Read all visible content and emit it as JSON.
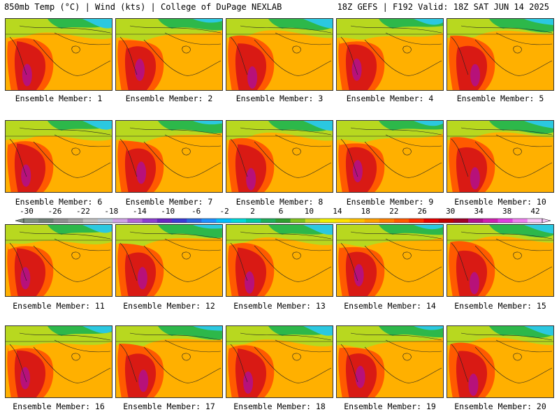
{
  "header": {
    "left": "850mb Temp (°C) | Wind (kts) | College of DuPage NEXLAB",
    "right": "18Z GEFS | F192 Valid: 18Z SAT JUN 14 2025"
  },
  "panels": [
    {
      "label": "Ensemble Member: 1"
    },
    {
      "label": "Ensemble Member: 2"
    },
    {
      "label": "Ensemble Member: 3"
    },
    {
      "label": "Ensemble Member: 4"
    },
    {
      "label": "Ensemble Member: 5"
    },
    {
      "label": "Ensemble Member: 6"
    },
    {
      "label": "Ensemble Member: 7"
    },
    {
      "label": "Ensemble Member: 8"
    },
    {
      "label": "Ensemble Member: 9"
    },
    {
      "label": "Ensemble Member: 10"
    },
    {
      "label": "Ensemble Member: 11"
    },
    {
      "label": "Ensemble Member: 12"
    },
    {
      "label": "Ensemble Member: 13"
    },
    {
      "label": "Ensemble Member: 14"
    },
    {
      "label": "Ensemble Member: 15"
    },
    {
      "label": "Ensemble Member: 16"
    },
    {
      "label": "Ensemble Member: 17"
    },
    {
      "label": "Ensemble Member: 18"
    },
    {
      "label": "Ensemble Member: 19"
    },
    {
      "label": "Ensemble Member: 20"
    }
  ],
  "colorbar": {
    "labels": [
      "-30",
      "-26",
      "-22",
      "-18",
      "-14",
      "-10",
      "-6",
      "-2",
      "2",
      "6",
      "10",
      "14",
      "18",
      "22",
      "26",
      "30",
      "34",
      "38",
      "42"
    ],
    "colors": [
      "#7f8f84",
      "#6f7f76",
      "#909090",
      "#a3a3a3",
      "#c0c0c0",
      "#b7c7d9",
      "#cfa3e6",
      "#b266d9",
      "#8c3fd0",
      "#6a26c2",
      "#3b3bd6",
      "#2a6ae0",
      "#1e90ff",
      "#00bfff",
      "#00d9d9",
      "#00c8a0",
      "#1fae5a",
      "#2f9e2f",
      "#7fc21f",
      "#c8d81f",
      "#f0f000",
      "#ffe000",
      "#ffc000",
      "#ffa000",
      "#ff8000",
      "#ff5a00",
      "#ff2e00",
      "#e60000",
      "#c00000",
      "#a00028",
      "#b0108c",
      "#d020b0",
      "#e040e0",
      "#f080f0",
      "#f8c8f8"
    ]
  },
  "legend_colors": {
    "cold": "#2bc8e0",
    "cool": "#2db84a",
    "mild": "#b8d81f",
    "warm": "#ffb000",
    "hot": "#ff5a00",
    "very_hot": "#d91a14",
    "extreme": "#b0108c"
  }
}
